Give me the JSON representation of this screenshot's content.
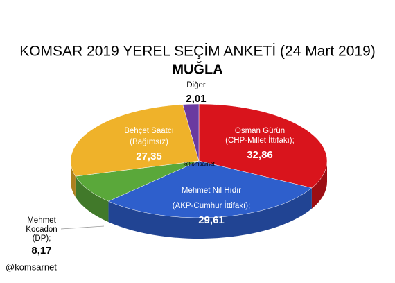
{
  "chart_data": {
    "type": "pie3d",
    "title": "KOMSAR 2019 YEREL SEÇİM ANKETİ (24 Mart 2019)",
    "subtitle": "MUĞLA",
    "watermark": "@komsarnet",
    "footer": "@komsarnet",
    "categories": [
      [
        "Osman Gürün",
        "(CHP-Millet İttifakı);"
      ],
      [
        "Mehmet Nil Hıdır",
        "(AKP-Cumhur İttifakı);"
      ],
      [
        "Mehmet",
        "Kocadon",
        "(DP);"
      ],
      [
        "Behçet Saatcı",
        "(Bağımsız)"
      ],
      [
        "Diğer"
      ]
    ],
    "values": [
      32.86,
      29.61,
      8.17,
      27.35,
      2.01
    ],
    "value_labels": [
      "32,86",
      "29,61",
      "8,17",
      "27,35",
      "2,01"
    ],
    "colors": [
      "#d9141c",
      "#2e5fcc",
      "#5aa83a",
      "#efb22a",
      "#6a3aa0"
    ]
  }
}
